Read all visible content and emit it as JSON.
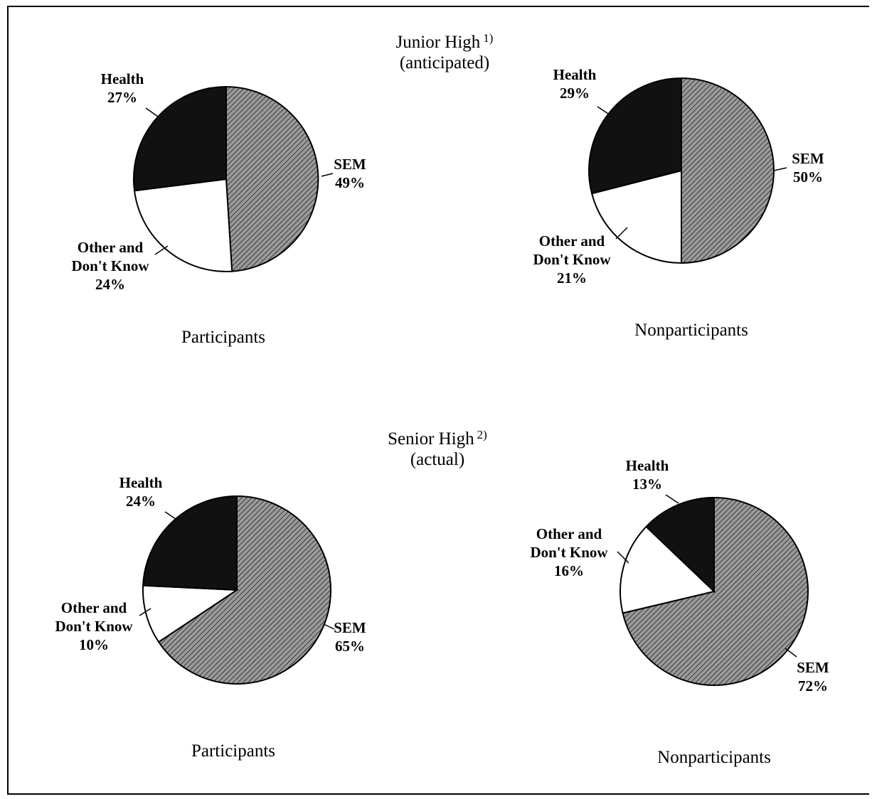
{
  "groups": {
    "junior": {
      "title": "Junior High",
      "note": "1)",
      "subtitle": "(anticipated)"
    },
    "senior": {
      "title": "Senior High",
      "note": "2)",
      "subtitle": "(actual)"
    }
  },
  "colors": {
    "SEM": "#8a8a8a",
    "Health": "#111111",
    "Other": "#ffffff"
  },
  "chart_data": [
    {
      "type": "pie",
      "group": "Junior High (anticipated)",
      "title": "Participants",
      "slices": [
        {
          "label": "SEM",
          "value": 49
        },
        {
          "label": "Other and Don't Know",
          "value": 24
        },
        {
          "label": "Health",
          "value": 27
        }
      ]
    },
    {
      "type": "pie",
      "group": "Junior High (anticipated)",
      "title": "Nonparticipants",
      "slices": [
        {
          "label": "SEM",
          "value": 50
        },
        {
          "label": "Other and Don't Know",
          "value": 21
        },
        {
          "label": "Health",
          "value": 29
        }
      ]
    },
    {
      "type": "pie",
      "group": "Senior High (actual)",
      "title": "Participants",
      "slices": [
        {
          "label": "SEM",
          "value": 65
        },
        {
          "label": "Other and Don't Know",
          "value": 10
        },
        {
          "label": "Health",
          "value": 24
        }
      ]
    },
    {
      "type": "pie",
      "group": "Senior High (actual)",
      "title": "Nonparticipants",
      "slices": [
        {
          "label": "SEM",
          "value": 72
        },
        {
          "label": "Other and Don't Know",
          "value": 16
        },
        {
          "label": "Health",
          "value": 13
        }
      ]
    }
  ]
}
